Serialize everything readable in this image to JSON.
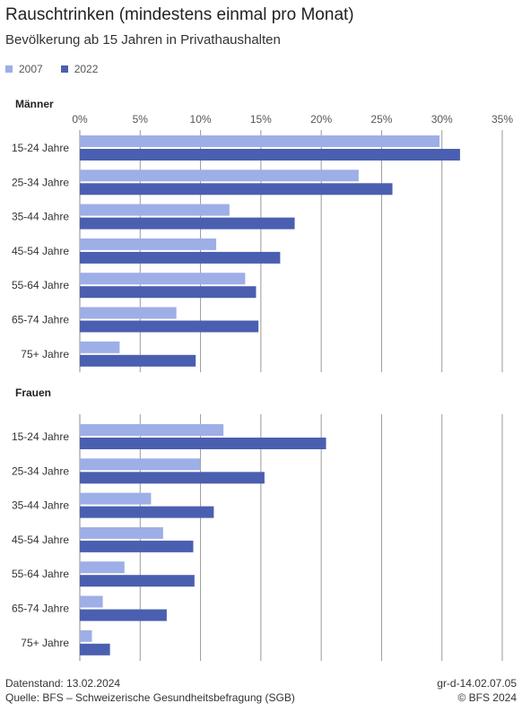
{
  "title": "Rauschtrinken (mindestens einmal pro Monat)",
  "subtitle": "Bevölkerung ab 15 Jahren in Privathaushalten",
  "footer": {
    "stand": "Datenstand: 13.02.2024",
    "source": "Quelle: BFS – Schweizerische Gesundheitsbefragung (SGB)",
    "code": "gr-d-14.02.07.05",
    "copyright": "© BFS 2024"
  },
  "chart_data": {
    "type": "bar",
    "orientation": "horizontal",
    "colors": {
      "2007": "#9eaee6",
      "2022": "#4a5fb0"
    },
    "legend": [
      "2007",
      "2022"
    ],
    "legend_position": "top-left",
    "xlim": [
      0,
      35
    ],
    "xticks": [
      "0%",
      "5%",
      "10%",
      "15%",
      "20%",
      "25%",
      "30%",
      "35%"
    ],
    "categories": [
      "15-24 Jahre",
      "25-34 Jahre",
      "35-44 Jahre",
      "45-54 Jahre",
      "55-64 Jahre",
      "65-74 Jahre",
      "75+ Jahre"
    ],
    "panels": [
      {
        "title": "Männer",
        "series": [
          {
            "name": "2007",
            "values": [
              29.8,
              23.1,
              12.4,
              11.3,
              13.7,
              8.0,
              3.3
            ]
          },
          {
            "name": "2022",
            "values": [
              31.5,
              25.9,
              17.8,
              16.6,
              14.6,
              14.8,
              9.6
            ]
          }
        ]
      },
      {
        "title": "Frauen",
        "series": [
          {
            "name": "2007",
            "values": [
              11.9,
              10.0,
              5.9,
              6.9,
              3.7,
              1.9,
              1.0
            ]
          },
          {
            "name": "2022",
            "values": [
              20.4,
              15.3,
              11.1,
              9.4,
              9.5,
              7.2,
              2.5
            ]
          }
        ]
      }
    ]
  }
}
